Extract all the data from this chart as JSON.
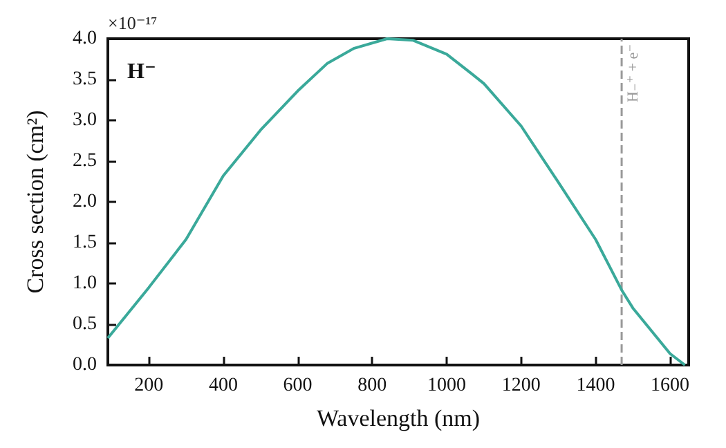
{
  "chart_data": {
    "type": "line",
    "xlabel": "Wavelength (nm)",
    "ylabel": "Cross section (cm²)",
    "x": [
      90,
      200,
      300,
      400,
      500,
      600,
      680,
      750,
      840,
      910,
      1000,
      1070,
      1100,
      1200,
      1300,
      1400,
      1470,
      1500,
      1600,
      1640
    ],
    "series": [
      {
        "color": "#3aa99a",
        "values": [
          0.33,
          0.95,
          1.54,
          2.32,
          2.88,
          3.36,
          3.7,
          3.88,
          4.0,
          3.98,
          3.81,
          3.56,
          3.45,
          2.93,
          2.24,
          1.54,
          0.92,
          0.7,
          0.14,
          0.0
        ]
      }
    ],
    "xlim": [
      90,
      1650
    ],
    "xticks": [
      200,
      400,
      600,
      800,
      1000,
      1200,
      1400,
      1600
    ],
    "ylim": [
      0,
      4.0
    ],
    "yticks": [
      {
        "value": 0,
        "label": "0.0"
      },
      0.5,
      {
        "value": 1,
        "label": "1.0"
      },
      1.5,
      {
        "value": 2,
        "label": "2.0"
      },
      2.5,
      {
        "value": 3,
        "label": "3.0"
      },
      3.5,
      {
        "value": 4,
        "label": "4.0"
      }
    ],
    "ref_lines": [
      {
        "axis": "x",
        "value": 1470,
        "label": "H₋⁺ + e⁻",
        "color": "#999999",
        "line_style": "dashed"
      }
    ],
    "annotations": [
      "×10⁻¹⁷",
      "H⁻"
    ],
    "marker": "none",
    "line_style": "solid"
  }
}
